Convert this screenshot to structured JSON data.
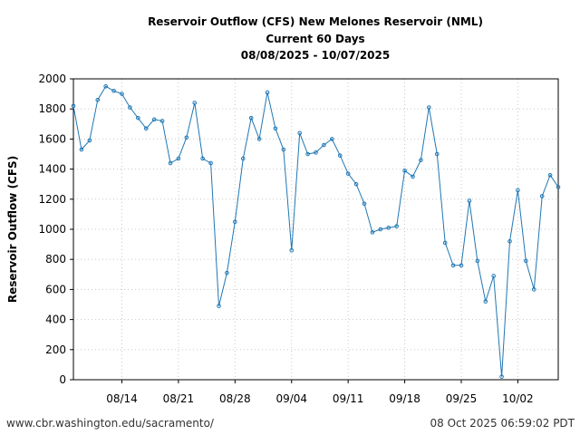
{
  "chart_data": {
    "type": "line",
    "title": "Reservoir Outflow (CFS) New Melones Reservoir (NML)",
    "subtitle": "Current 60 Days",
    "date_range": "08/08/2025 - 10/07/2025",
    "ylabel": "Reservoir Outflow (CFS)",
    "xlabel": "",
    "ylim": [
      0,
      2000
    ],
    "yticks": [
      0,
      200,
      400,
      600,
      800,
      1000,
      1200,
      1400,
      1600,
      1800,
      2000
    ],
    "xlim": [
      "2025-08-08",
      "2025-10-07"
    ],
    "xtick_labels": [
      "08/14",
      "08/21",
      "08/28",
      "09/04",
      "09/11",
      "09/18",
      "09/25",
      "10/02"
    ],
    "xtick_dates": [
      "2025-08-14",
      "2025-08-21",
      "2025-08-28",
      "2025-09-04",
      "2025-09-11",
      "2025-09-18",
      "2025-09-25",
      "2025-10-02"
    ],
    "grid": true,
    "line_color": "#1f77b4",
    "x": [
      "2025-08-08",
      "2025-08-09",
      "2025-08-10",
      "2025-08-11",
      "2025-08-12",
      "2025-08-13",
      "2025-08-14",
      "2025-08-15",
      "2025-08-16",
      "2025-08-17",
      "2025-08-18",
      "2025-08-19",
      "2025-08-20",
      "2025-08-21",
      "2025-08-22",
      "2025-08-23",
      "2025-08-24",
      "2025-08-25",
      "2025-08-26",
      "2025-08-27",
      "2025-08-28",
      "2025-08-29",
      "2025-08-30",
      "2025-08-31",
      "2025-09-01",
      "2025-09-02",
      "2025-09-03",
      "2025-09-04",
      "2025-09-05",
      "2025-09-06",
      "2025-09-07",
      "2025-09-08",
      "2025-09-09",
      "2025-09-10",
      "2025-09-11",
      "2025-09-12",
      "2025-09-13",
      "2025-09-14",
      "2025-09-15",
      "2025-09-16",
      "2025-09-17",
      "2025-09-18",
      "2025-09-19",
      "2025-09-20",
      "2025-09-21",
      "2025-09-22",
      "2025-09-23",
      "2025-09-24",
      "2025-09-25",
      "2025-09-26",
      "2025-09-27",
      "2025-09-28",
      "2025-09-29",
      "2025-09-30",
      "2025-10-01",
      "2025-10-02",
      "2025-10-03",
      "2025-10-04",
      "2025-10-05",
      "2025-10-06",
      "2025-10-07"
    ],
    "values": [
      1820,
      1530,
      1590,
      1860,
      1950,
      1920,
      1900,
      1810,
      1740,
      1670,
      1730,
      1720,
      1440,
      1470,
      1610,
      1840,
      1470,
      1440,
      490,
      710,
      1050,
      1470,
      1740,
      1600,
      1910,
      1670,
      1530,
      860,
      1640,
      1500,
      1510,
      1560,
      1600,
      1490,
      1370,
      1300,
      1170,
      980,
      1000,
      1010,
      1020,
      1390,
      1350,
      1460,
      1810,
      1500,
      910,
      760,
      760,
      1190,
      790,
      520,
      690,
      20,
      920,
      1260,
      790,
      600,
      1220,
      1360,
      1280
    ]
  },
  "footer": {
    "left": "www.cbr.washington.edu/sacramento/",
    "right": "08 Oct 2025 06:59:02 PDT"
  }
}
